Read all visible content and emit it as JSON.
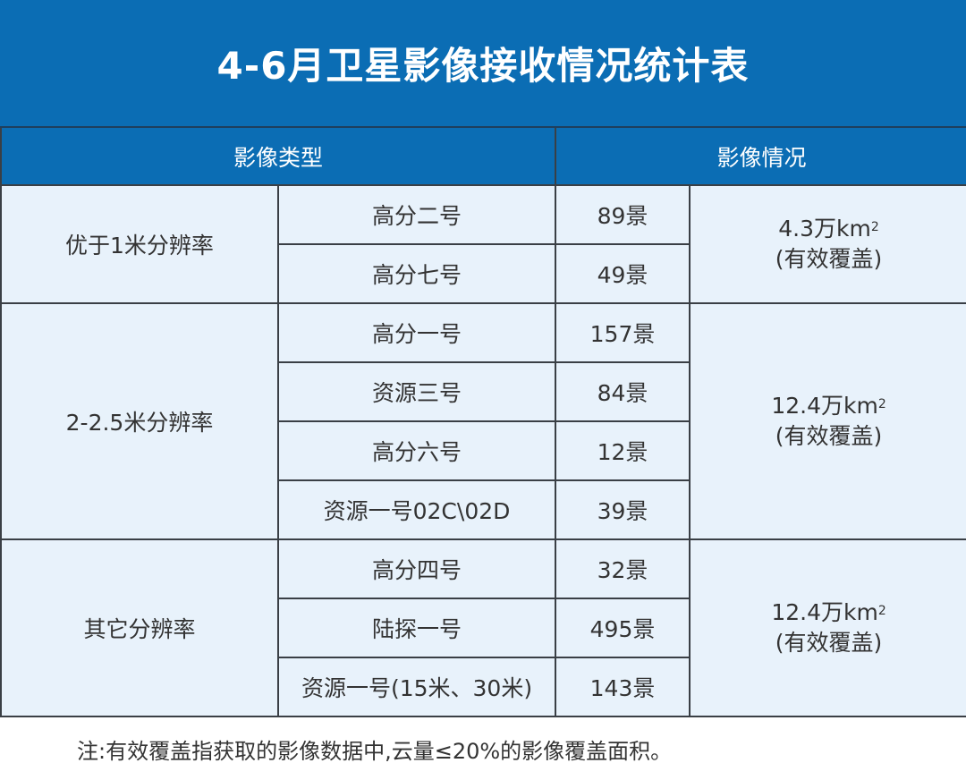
{
  "title": "4-6月卫星影像接收情况统计表",
  "headers": {
    "type": "影像类型",
    "status": "影像情况"
  },
  "colors": {
    "header_bg": "#0b6db4",
    "cell_bg": "#e8f2fb",
    "border": "#3a3f45"
  },
  "groups": [
    {
      "category": "优于1米分辨率",
      "area_value": "4.3万km",
      "area_sup": "2",
      "area_note": "(有效覆盖)",
      "rows": [
        {
          "satellite": "高分二号",
          "count": "89景"
        },
        {
          "satellite": "高分七号",
          "count": "49景"
        }
      ]
    },
    {
      "category": "2-2.5米分辨率",
      "area_value": "12.4万km",
      "area_sup": "2",
      "area_note": "(有效覆盖)",
      "rows": [
        {
          "satellite": "高分一号",
          "count": "157景"
        },
        {
          "satellite": "资源三号",
          "count": "84景"
        },
        {
          "satellite": "高分六号",
          "count": "12景"
        },
        {
          "satellite": "资源一号02C\\02D",
          "count": "39景"
        }
      ]
    },
    {
      "category": "其它分辨率",
      "area_value": "12.4万km",
      "area_sup": "2",
      "area_note": "(有效覆盖)",
      "rows": [
        {
          "satellite": "高分四号",
          "count": "32景"
        },
        {
          "satellite": "陆探一号",
          "count": "495景"
        },
        {
          "satellite": "资源一号(15米、30米)",
          "count": "143景"
        }
      ]
    }
  ],
  "note": "注:有效覆盖指获取的影像数据中,云量≤20%的影像覆盖面积。"
}
